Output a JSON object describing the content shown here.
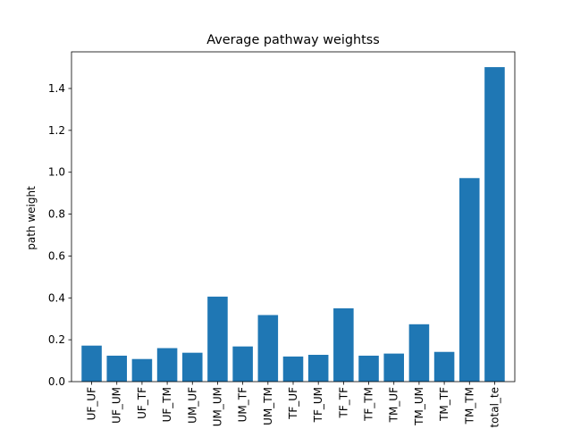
{
  "chart_data": {
    "type": "bar",
    "title": "Average pathway weightss",
    "xlabel": "",
    "ylabel": "path weight",
    "categories": [
      "UF_UF",
      "UF_UM",
      "UF_TF",
      "UF_TM",
      "UM_UF",
      "UM_UM",
      "UM_TF",
      "UM_TM",
      "TF_UF",
      "TF_UM",
      "TF_TF",
      "TF_TM",
      "TM_UF",
      "TM_UM",
      "TM_TF",
      "TM_TM",
      "total_te"
    ],
    "values": [
      0.172,
      0.124,
      0.108,
      0.16,
      0.138,
      0.406,
      0.168,
      0.318,
      0.12,
      0.128,
      0.35,
      0.124,
      0.134,
      0.274,
      0.142,
      0.972,
      1.502
    ],
    "ylim": [
      0,
      1.575
    ],
    "yticks": [
      "0.0",
      "0.2",
      "0.4",
      "0.6",
      "0.8",
      "1.0",
      "1.2",
      "1.4"
    ],
    "bar_color": "#1f77b4",
    "grid": false,
    "legend": "none"
  }
}
